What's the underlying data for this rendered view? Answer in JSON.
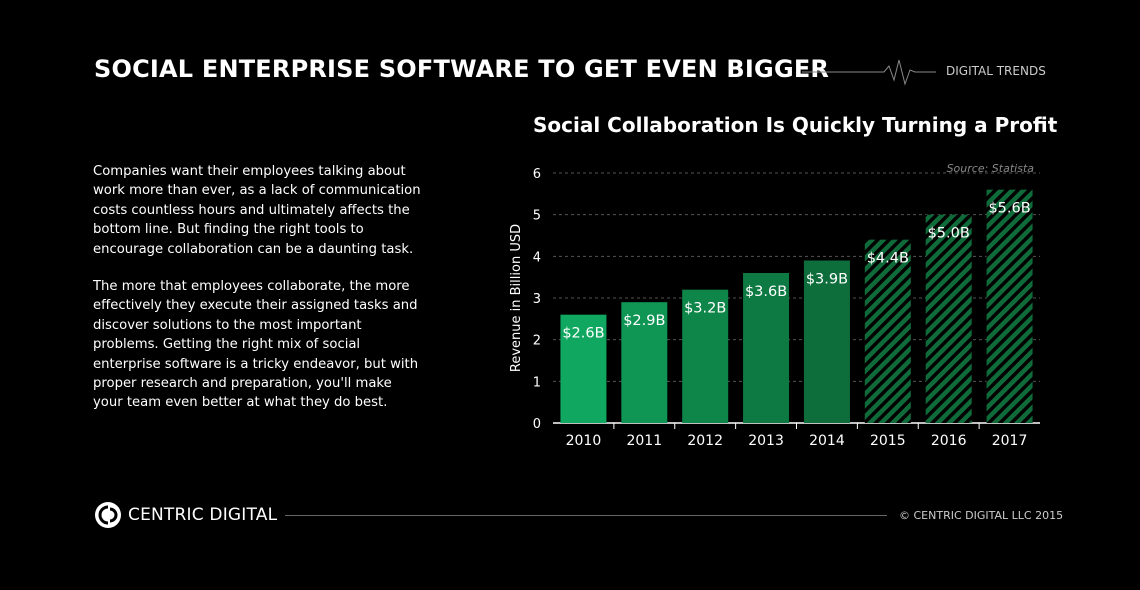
{
  "header": {
    "title": "SOCIAL ENTERPRISE SOFTWARE TO GET EVEN BIGGER",
    "brand": "DIGITAL TRENDS"
  },
  "body": {
    "paragraphs": [
      "Companies want their employees talking about work more than ever, as a lack of communication costs countless hours and ultimately affects the bottom line. But finding the right tools to encourage collaboration can be a daunting task.",
      "The more that employees collaborate, the more effectively they execute their assigned tasks and discover solutions to the most important problems. Getting the right mix of social enterprise software is a tricky endeavor, but with proper research and preparation, you'll make your team even better at what they do best."
    ]
  },
  "chart_data": {
    "type": "bar",
    "title": "Social Collaboration Is Quickly Turning a Profit",
    "source": "Source: Statista",
    "ylabel": "Revenue in Billion USD",
    "xlabel": "",
    "ylim": [
      0,
      6
    ],
    "yticks": [
      0,
      1,
      2,
      3,
      4,
      5,
      6
    ],
    "grid": true,
    "categories": [
      "2010",
      "2011",
      "2012",
      "2013",
      "2014",
      "2015",
      "2016",
      "2017"
    ],
    "values": [
      2.6,
      2.9,
      3.2,
      3.6,
      3.9,
      4.4,
      5.0,
      5.6
    ],
    "labels": [
      "$2.6B",
      "$2.9B",
      "$3.2B",
      "$3.6B",
      "$3.9B",
      "$4.4B",
      "$5.0B",
      "$5.6B"
    ],
    "projected": [
      false,
      false,
      false,
      false,
      false,
      true,
      true,
      true
    ],
    "colors": [
      "#10a860",
      "#0f9554",
      "#0e8549",
      "#0e7a43",
      "#0d6e3c",
      "#0f6b3a",
      "#0f6b3a",
      "#0f6b3a"
    ]
  },
  "footer": {
    "logo_text": "CENTRIC DIGITAL",
    "copyright": "© CENTRIC DIGITAL LLC 2015"
  }
}
